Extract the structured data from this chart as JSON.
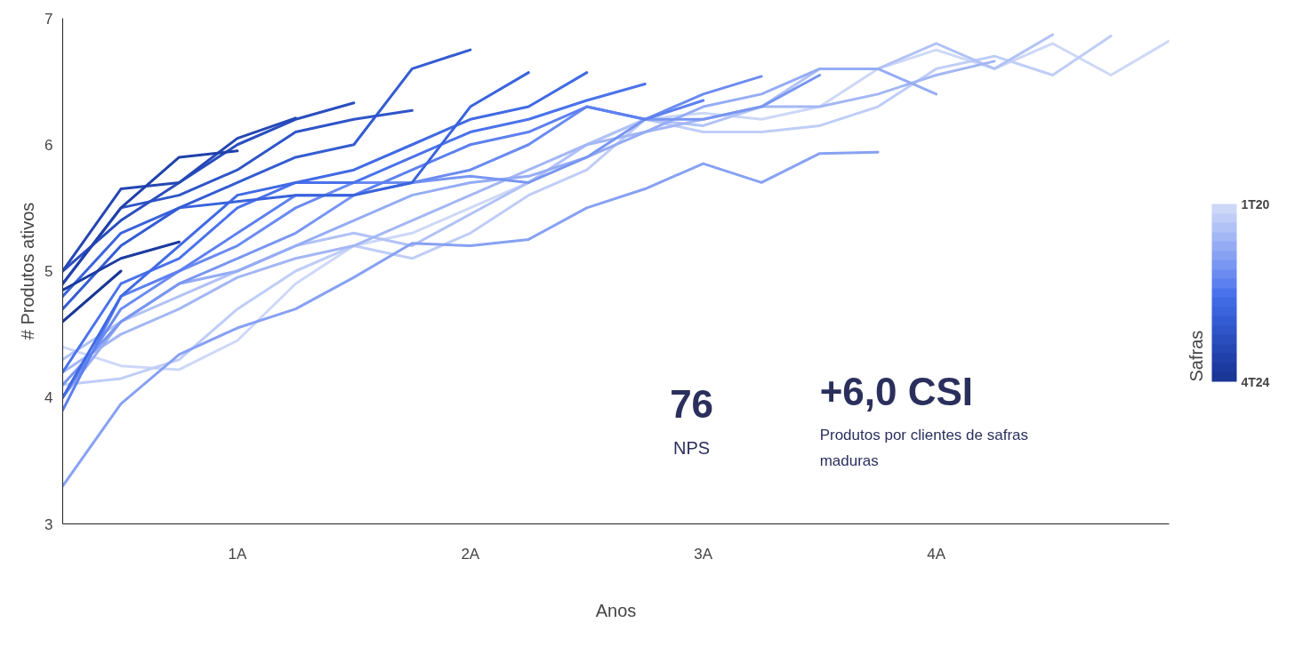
{
  "chart_data": {
    "type": "line",
    "xlabel": "Anos",
    "ylabel": "# Produtos ativos",
    "clabel": "Safras",
    "xlim": [
      0.25,
      5
    ],
    "ylim": [
      3,
      7
    ],
    "xticks": [
      {
        "value": 1,
        "label": "1A"
      },
      {
        "value": 2,
        "label": "2A"
      },
      {
        "value": 3,
        "label": "3A"
      },
      {
        "value": 4,
        "label": "4A"
      }
    ],
    "yticks": [
      3,
      4,
      5,
      6,
      7
    ],
    "clim": [
      0,
      1
    ],
    "cticks": [
      {
        "value": 0,
        "label": "4T24"
      },
      {
        "value": 1,
        "label": "1T20"
      }
    ],
    "grid": false,
    "marker": "none",
    "line_style": "solid",
    "annotations": [
      "76",
      "NPS",
      "+6,0 CSI",
      "Produtos por clientes de safras maduras"
    ],
    "series": [
      {
        "color": "#cdd8f8",
        "x": [
          0.25,
          0.5,
          0.75,
          1,
          1.25,
          1.5,
          1.75,
          2,
          2.25,
          2.5,
          2.75,
          3,
          3.25,
          3.5,
          3.75,
          4,
          4.25,
          4.5,
          4.75,
          5
        ],
        "values": [
          4.4,
          4.25,
          4.22,
          4.45,
          4.9,
          5.2,
          5.3,
          5.5,
          5.7,
          6.0,
          6.2,
          6.25,
          6.2,
          6.3,
          6.6,
          6.75,
          6.6,
          6.8,
          6.55,
          6.82
        ]
      },
      {
        "color": "#bfcdf7",
        "x": [
          0.25,
          0.5,
          0.75,
          1,
          1.25,
          1.5,
          1.75,
          2,
          2.25,
          2.5,
          2.75,
          3,
          3.25,
          3.5,
          3.75,
          4,
          4.25,
          4.5,
          4.75
        ],
        "values": [
          4.1,
          4.15,
          4.3,
          4.7,
          5.0,
          5.2,
          5.1,
          5.3,
          5.6,
          5.8,
          6.2,
          6.1,
          6.1,
          6.15,
          6.3,
          6.6,
          6.7,
          6.55,
          6.86
        ]
      },
      {
        "color": "#b1c2f6",
        "x": [
          0.25,
          0.5,
          0.75,
          1,
          1.25,
          1.5,
          1.75,
          2,
          2.25,
          2.5,
          2.75,
          3,
          3.25,
          3.5,
          3.75,
          4,
          4.25,
          4.5
        ],
        "values": [
          4.3,
          4.6,
          4.8,
          5.0,
          5.2,
          5.3,
          5.2,
          5.45,
          5.7,
          6.0,
          6.2,
          6.15,
          6.3,
          6.6,
          6.6,
          6.8,
          6.6,
          6.87
        ]
      },
      {
        "color": "#a3b7f5",
        "x": [
          0.25,
          0.5,
          0.75,
          1,
          1.25,
          1.5,
          1.75,
          2,
          2.25,
          2.5,
          2.75,
          3,
          3.25,
          3.5,
          3.75,
          4,
          4.25
        ],
        "values": [
          4.2,
          4.5,
          4.7,
          4.95,
          5.1,
          5.2,
          5.4,
          5.6,
          5.8,
          6.0,
          6.1,
          6.2,
          6.3,
          6.3,
          6.4,
          6.55,
          6.66
        ]
      },
      {
        "color": "#95acf4",
        "x": [
          0.25,
          0.5,
          0.75,
          1,
          1.25,
          1.5,
          1.75,
          2,
          2.25,
          2.5,
          2.75,
          3,
          3.25,
          3.5,
          3.75,
          4
        ],
        "values": [
          4.0,
          4.6,
          4.9,
          5.0,
          5.2,
          5.4,
          5.6,
          5.7,
          5.75,
          5.9,
          6.1,
          6.3,
          6.4,
          6.6,
          6.6,
          6.4
        ]
      },
      {
        "color": "#87a1f3",
        "x": [
          0.25,
          0.5,
          0.75,
          1,
          1.25,
          1.5,
          1.75,
          2,
          2.25,
          2.5,
          2.75,
          3,
          3.25,
          3.5,
          3.75
        ],
        "values": [
          3.3,
          3.95,
          4.34,
          4.55,
          4.7,
          4.95,
          5.22,
          5.2,
          5.25,
          5.5,
          5.65,
          5.85,
          5.7,
          5.93,
          5.94
        ]
      },
      {
        "color": "#7996f2",
        "x": [
          0.25,
          0.5,
          0.75,
          1,
          1.25,
          1.5,
          1.75,
          2,
          2.25,
          2.5,
          2.75,
          3,
          3.25,
          3.5
        ],
        "values": [
          4.1,
          4.6,
          4.9,
          5.1,
          5.3,
          5.6,
          5.7,
          5.75,
          5.7,
          5.9,
          6.2,
          6.2,
          6.3,
          6.55
        ]
      },
      {
        "color": "#6b8bf1",
        "x": [
          0.25,
          0.5,
          0.75,
          1,
          1.25,
          1.5,
          1.75,
          2,
          2.25,
          2.5,
          2.75,
          3,
          3.25
        ],
        "values": [
          4.0,
          4.7,
          5.0,
          5.2,
          5.5,
          5.7,
          5.7,
          5.8,
          6.0,
          6.3,
          6.2,
          6.4,
          6.54
        ]
      },
      {
        "color": "#5d80f0",
        "x": [
          0.25,
          0.5,
          0.75,
          1,
          1.25,
          1.5,
          1.75,
          2,
          2.25,
          2.5,
          2.75,
          3
        ],
        "values": [
          3.9,
          4.8,
          5.0,
          5.3,
          5.6,
          5.6,
          5.8,
          6.0,
          6.1,
          6.3,
          6.2,
          6.35
        ]
      },
      {
        "color": "#4a72ec",
        "x": [
          0.25,
          0.5,
          0.75,
          1,
          1.25,
          1.5,
          1.75,
          2,
          2.25,
          2.5,
          2.75
        ],
        "values": [
          4.2,
          4.9,
          5.1,
          5.5,
          5.7,
          5.7,
          5.9,
          6.1,
          6.2,
          6.35,
          6.48
        ]
      },
      {
        "color": "#406ae4",
        "x": [
          0.25,
          0.5,
          0.75,
          1,
          1.25,
          1.5,
          1.75,
          2,
          2.25,
          2.5
        ],
        "values": [
          4.0,
          4.8,
          5.2,
          5.6,
          5.7,
          5.8,
          6.0,
          6.2,
          6.3,
          6.57
        ]
      },
      {
        "color": "#3a63dc",
        "x": [
          0.25,
          0.5,
          0.75,
          1,
          1.25,
          1.5,
          1.75,
          2,
          2.25
        ],
        "values": [
          4.8,
          5.3,
          5.5,
          5.55,
          5.6,
          5.6,
          5.7,
          6.3,
          6.57
        ]
      },
      {
        "color": "#345cd2",
        "x": [
          0.25,
          0.5,
          0.75,
          1,
          1.25,
          1.5,
          1.75,
          2
        ],
        "values": [
          4.7,
          5.2,
          5.5,
          5.7,
          5.9,
          6.0,
          6.6,
          6.75
        ]
      },
      {
        "color": "#2f55c8",
        "x": [
          0.25,
          0.5,
          0.75,
          1,
          1.25,
          1.5,
          1.75
        ],
        "values": [
          4.9,
          5.5,
          5.6,
          5.8,
          6.1,
          6.2,
          6.27
        ]
      },
      {
        "color": "#2a4ebe",
        "x": [
          0.25,
          0.5,
          0.75,
          1,
          1.25,
          1.5
        ],
        "values": [
          5.0,
          5.4,
          5.7,
          6.0,
          6.2,
          6.33
        ]
      },
      {
        "color": "#2547b4",
        "x": [
          0.25,
          0.5,
          0.75,
          1,
          1.25
        ],
        "values": [
          5.0,
          5.65,
          5.7,
          6.05,
          6.21
        ]
      },
      {
        "color": "#2040aa",
        "x": [
          0.25,
          0.5,
          0.75,
          1
        ],
        "values": [
          4.9,
          5.5,
          5.9,
          5.95
        ]
      },
      {
        "color": "#1c3ba0",
        "x": [
          0.25,
          0.5,
          0.75
        ],
        "values": [
          4.85,
          5.1,
          5.23
        ]
      },
      {
        "color": "#1a3696",
        "x": [
          0.25,
          0.5
        ],
        "values": [
          4.6,
          5.0
        ]
      }
    ]
  }
}
